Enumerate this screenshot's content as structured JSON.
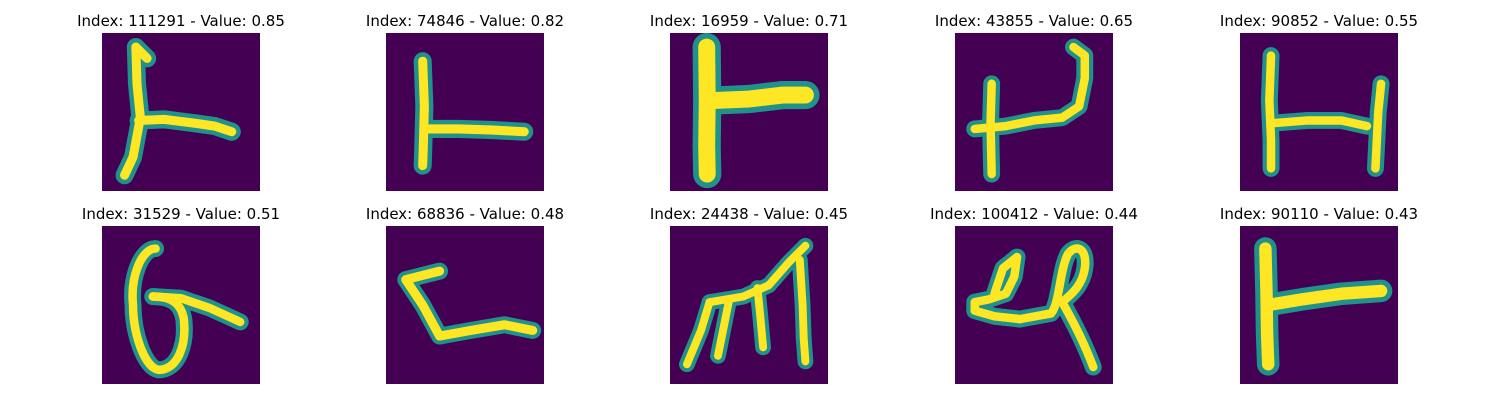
{
  "figure": {
    "background_color": "#ffffff",
    "colormap": {
      "name": "viridis",
      "low": "#440154",
      "mid": "#21918c",
      "high": "#fde725"
    },
    "panels": [
      {
        "title": "Index: 111291 - Value: 0.85",
        "index": 111291,
        "value": 0.85
      },
      {
        "title": "Index: 74846 - Value: 0.82",
        "index": 74846,
        "value": 0.82
      },
      {
        "title": "Index: 16959 - Value: 0.71",
        "index": 16959,
        "value": 0.71
      },
      {
        "title": "Index: 43855 - Value: 0.65",
        "index": 43855,
        "value": 0.65
      },
      {
        "title": "Index: 90852 - Value: 0.55",
        "index": 90852,
        "value": 0.55
      },
      {
        "title": "Index: 31529 - Value: 0.51",
        "index": 31529,
        "value": 0.51
      },
      {
        "title": "Index: 68836 - Value: 0.48",
        "index": 68836,
        "value": 0.48
      },
      {
        "title": "Index: 24438 - Value: 0.45",
        "index": 24438,
        "value": 0.45
      },
      {
        "title": "Index: 100412 - Value: 0.44",
        "index": 100412,
        "value": 0.44
      },
      {
        "title": "Index: 90110 - Value: 0.43",
        "index": 90110,
        "value": 0.43
      }
    ]
  }
}
